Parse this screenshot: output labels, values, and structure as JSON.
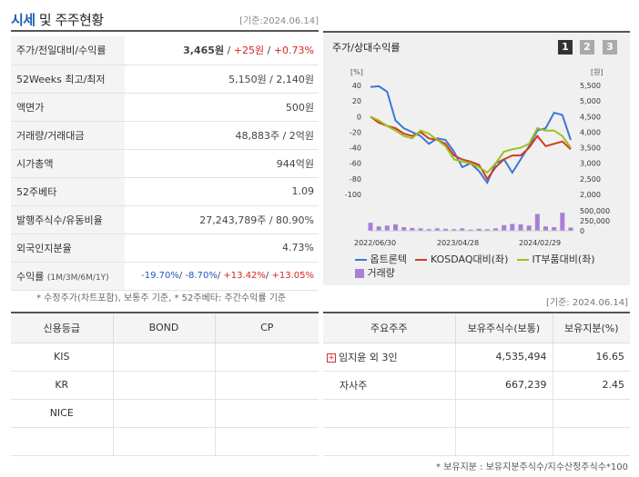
{
  "header": {
    "title_hl": "시세",
    "title_rest": "및 주주현황",
    "date": "[기준:2024.06.14]"
  },
  "price": {
    "rows": [
      {
        "label": "주가/전일대비/수익률",
        "v1": "3,465원",
        "sep1": " / ",
        "v2": "+25원",
        "sep2": " / ",
        "v3": "+0.73%"
      },
      {
        "label": "52Weeks 최고/최저",
        "value": "5,150원 / 2,140원"
      },
      {
        "label": "액면가",
        "value": "500원"
      },
      {
        "label": "거래량/거래대금",
        "value": "48,883주 / 2억원"
      },
      {
        "label": "시가총액",
        "value": "944억원"
      },
      {
        "label": "52주베타",
        "value": "1.09"
      },
      {
        "label": "발행주식수/유동비율",
        "value": "27,243,789주 / 80.90%"
      },
      {
        "label": "외국인지분율",
        "value": "4.73%"
      },
      {
        "label": "수익률",
        "sublabel": "(1M/3M/6M/1Y)",
        "r1": "-19.70%",
        "r2": "-8.70%",
        "r3": "+13.42%",
        "r4": "+13.05%",
        "sep": "/ "
      }
    ],
    "note": "* 수정주가(차트포함), 보통주 기준, * 52주베타: 주간수익률 기준"
  },
  "chart": {
    "title": "주가/상대수익률",
    "pages": [
      "1",
      "2",
      "3"
    ],
    "left_unit": "[%]",
    "right_unit": "[원]",
    "left_ticks": [
      "40",
      "20",
      "0",
      "-20",
      "-40",
      "-60",
      "-80",
      "-100"
    ],
    "right_ticks": [
      "5,500",
      "5,000",
      "4,500",
      "4,000",
      "3,500",
      "3,000",
      "2,500",
      "2,000"
    ],
    "vol_ticks": [
      "500,000",
      "250,000",
      "0"
    ],
    "x_ticks": [
      "2022/06/30",
      "2023/04/28",
      "2024/02/29"
    ],
    "legend": {
      "s1": "옵트론텍",
      "s2": "KOSDAQ대비(좌)",
      "s3": "IT부품대비(좌)",
      "s4": "거래량"
    },
    "colors": {
      "s1": "#3a78d6",
      "s2": "#d43a22",
      "s3": "#9ac21c",
      "vol": "#a77fd4"
    }
  },
  "chart_data": {
    "type": "line",
    "x": [
      0,
      1,
      2,
      3,
      4,
      5,
      6,
      7,
      8,
      9,
      10,
      11,
      12,
      13,
      14,
      15,
      16,
      17,
      18,
      19,
      20,
      21,
      22,
      23,
      24
    ],
    "series": [
      {
        "name": "옵트론텍",
        "values": [
          38,
          39,
          32,
          -5,
          -15,
          -20,
          -25,
          -35,
          -28,
          -30,
          -45,
          -65,
          -60,
          -70,
          -85,
          -60,
          -55,
          -72,
          -55,
          -38,
          -18,
          -15,
          5,
          2,
          -30
        ]
      },
      {
        "name": "KOSDAQ대비(좌)",
        "values": [
          0,
          -8,
          -12,
          -15,
          -22,
          -25,
          -20,
          -28,
          -30,
          -35,
          -50,
          -55,
          -58,
          -62,
          -80,
          -65,
          -55,
          -50,
          -50,
          -40,
          -25,
          -38,
          -35,
          -32,
          -42
        ]
      },
      {
        "name": "IT부품대비(좌)",
        "values": [
          0,
          -5,
          -12,
          -18,
          -25,
          -28,
          -18,
          -22,
          -30,
          -38,
          -55,
          -58,
          -60,
          -65,
          -72,
          -60,
          -45,
          -42,
          -40,
          -35,
          -15,
          -18,
          -18,
          -25,
          -40
        ]
      },
      {
        "name": "거래량",
        "values": [
          200000,
          110000,
          130000,
          160000,
          90000,
          70000,
          60000,
          40000,
          60000,
          50000,
          40000,
          60000,
          30000,
          50000,
          40000,
          60000,
          140000,
          170000,
          160000,
          130000,
          420000,
          110000,
          90000,
          450000,
          80000
        ]
      }
    ],
    "ylim_left": [
      -100,
      40
    ],
    "ylim_right": [
      2000,
      5500
    ],
    "ylim_vol": [
      0,
      500000
    ]
  },
  "credit": {
    "headers": [
      "신용등급",
      "BOND",
      "CP"
    ],
    "rows": [
      [
        "KIS",
        "",
        ""
      ],
      [
        "KR",
        "",
        ""
      ],
      [
        "NICE",
        "",
        ""
      ],
      [
        "",
        "",
        ""
      ]
    ]
  },
  "holders": {
    "date": "[기준: 2024.06.14]",
    "headers": [
      "주요주주",
      "보유주식수(보통)",
      "보유지분(%)"
    ],
    "rows": [
      {
        "name": "임지윤 외 3인",
        "shares": "4,535,494",
        "pct": "16.65",
        "icon": "plus-icon"
      },
      {
        "name": "자사주",
        "shares": "667,239",
        "pct": "2.45"
      },
      {
        "name": "",
        "shares": "",
        "pct": ""
      },
      {
        "name": "",
        "shares": "",
        "pct": ""
      }
    ],
    "note": "* 보유지분 : 보유지분주식수/지수산정주식수*100"
  }
}
